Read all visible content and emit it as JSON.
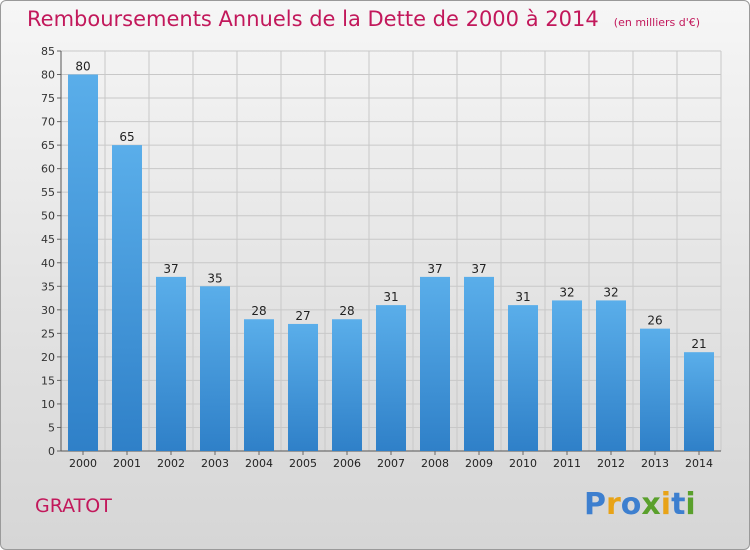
{
  "chart_data": {
    "type": "bar",
    "title": "Remboursements Annuels de la Dette de 2000 à 2014",
    "unit": "(en milliers d'€)",
    "categories": [
      "2000",
      "2001",
      "2002",
      "2003",
      "2004",
      "2005",
      "2006",
      "2007",
      "2008",
      "2009",
      "2010",
      "2011",
      "2012",
      "2013",
      "2014"
    ],
    "values": [
      80,
      65,
      37,
      35,
      28,
      27,
      28,
      31,
      37,
      37,
      31,
      32,
      32,
      26,
      21
    ],
    "ylim": [
      0,
      85
    ],
    "yticks": [
      0,
      5,
      10,
      15,
      20,
      25,
      30,
      35,
      40,
      45,
      50,
      55,
      60,
      65,
      70,
      75,
      80,
      85
    ],
    "grid": true,
    "bar_color": "#4a9fdf"
  },
  "commune": "GRATOT",
  "logo": {
    "text": "Proxiti",
    "letter_colors": [
      "#3d7fcf",
      "#e8a317",
      "#3d7fcf",
      "#5aa02c",
      "#e8a317",
      "#3d7fcf",
      "#5aa02c"
    ]
  }
}
